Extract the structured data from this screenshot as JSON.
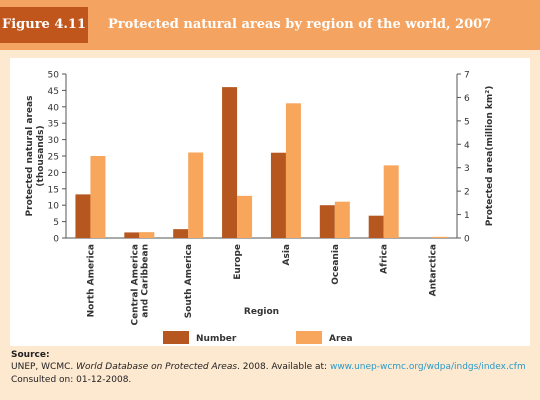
{
  "header": {
    "figure_label": "Figure 4.11",
    "title": "Protected natural areas by region of the world, 2007"
  },
  "chart_data": {
    "type": "bar",
    "categories": [
      "North America",
      "Central America and Caribbean",
      "South America",
      "Europe",
      "Asia",
      "Oceania",
      "Africa",
      "Antarctica"
    ],
    "category_lines": [
      [
        "North America"
      ],
      [
        "Central America",
        "and Caribbean"
      ],
      [
        "South America"
      ],
      [
        "Europe"
      ],
      [
        "Asia"
      ],
      [
        "Oceania"
      ],
      [
        "Africa"
      ],
      [
        "Antarctica"
      ]
    ],
    "series": [
      {
        "name": "Number",
        "axis": "left",
        "color": "#b5571f",
        "values": [
          13.3,
          1.7,
          2.7,
          46,
          26,
          10,
          6.8,
          0
        ]
      },
      {
        "name": "Area",
        "axis": "right",
        "color": "#f7a65c",
        "values": [
          3.5,
          0.25,
          3.65,
          1.8,
          5.75,
          1.55,
          3.1,
          0.05
        ]
      }
    ],
    "y_left": {
      "label": "Protected natural areas (thousands)",
      "label_lines": [
        "Protected natural areas",
        "(thousands)"
      ],
      "min": 0,
      "max": 50,
      "ticks": [
        0,
        5,
        10,
        15,
        20,
        25,
        30,
        35,
        40,
        45,
        50
      ]
    },
    "y_right": {
      "label": "Protected area(million km²)",
      "min": 0,
      "max": 7,
      "ticks": [
        0,
        1,
        2,
        3,
        4,
        5,
        6,
        7
      ]
    },
    "xlabel": "Region",
    "legend_position": "bottom",
    "grid": false
  },
  "source": {
    "heading": "Source:",
    "prefix": "UNEP, WCMC. ",
    "italic": "World Database on Protected Areas",
    "middle": ". 2008. Available at: ",
    "link": "www.unep-wcmc.org/wdpa/indgs/index.cfm",
    "suffix": " Consulted on: 01-12-2008."
  }
}
